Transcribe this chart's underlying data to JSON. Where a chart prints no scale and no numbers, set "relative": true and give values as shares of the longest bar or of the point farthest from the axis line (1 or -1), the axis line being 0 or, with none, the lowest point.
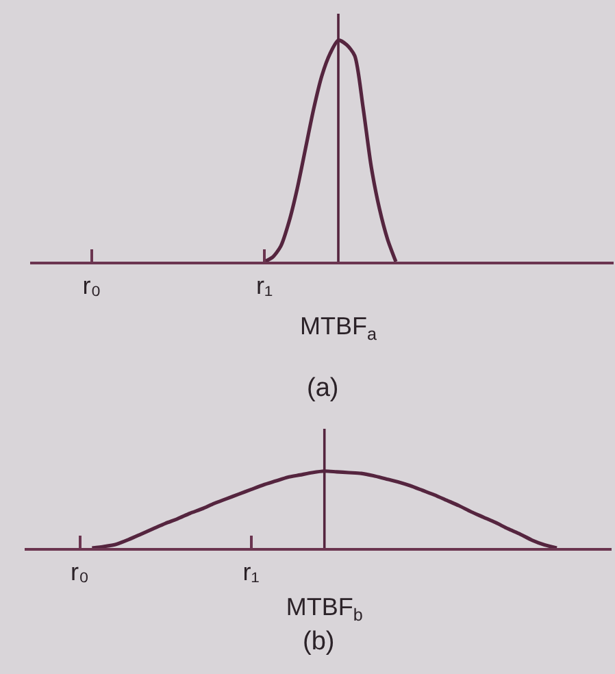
{
  "chart_data": [
    {
      "type": "line",
      "relative": true,
      "annotations": [
        "(a)"
      ],
      "categories": [
        null,
        null,
        null,
        null,
        null,
        null,
        null,
        "r₀",
        null,
        null,
        null,
        null,
        null,
        null,
        null,
        null,
        null,
        null,
        null,
        null,
        null,
        null,
        null,
        null,
        null,
        null,
        null,
        null,
        "r₁",
        null,
        null,
        null,
        null,
        null,
        null,
        null,
        null,
        "MTBF$_{a}$",
        null,
        null,
        null,
        null,
        null,
        null,
        null,
        null,
        null,
        null,
        null,
        null,
        null,
        null,
        null,
        null,
        null,
        null,
        null,
        null,
        null,
        null,
        null,
        null,
        null,
        null,
        null,
        null,
        null,
        null,
        null,
        null,
        null
      ],
      "ref_lines": [
        {
          "axis": "x",
          "value": "MTBF$_{a}$",
          "color": "#55253f"
        }
      ],
      "series": [
        {
          "color": "#55253f",
          "values": [
            null,
            null,
            null,
            null,
            null,
            null,
            null,
            null,
            null,
            null,
            null,
            null,
            null,
            null,
            null,
            null,
            null,
            null,
            null,
            null,
            null,
            null,
            null,
            null,
            null,
            null,
            null,
            null,
            0,
            0.02,
            0.07,
            0.18,
            0.33,
            0.51,
            0.69,
            0.84,
            0.94,
            1,
            0.98,
            0.93,
            0.7,
            0.43,
            0.24,
            0.1,
            0,
            null,
            null,
            null,
            null,
            null,
            null,
            null,
            null,
            null,
            null,
            null,
            null,
            null,
            null,
            null,
            null,
            null,
            null,
            null,
            null,
            null,
            null,
            null,
            null,
            null,
            null
          ]
        }
      ]
    },
    {
      "type": "line",
      "relative": true,
      "annotations": [
        "(b)"
      ],
      "categories": [
        null,
        null,
        null,
        null,
        "r₀",
        null,
        null,
        null,
        null,
        null,
        null,
        null,
        null,
        null,
        null,
        null,
        null,
        null,
        "r₁",
        null,
        null,
        null,
        null,
        null,
        "MTBF$_{b}$",
        null,
        null,
        null,
        null,
        null,
        null,
        null,
        null,
        null,
        null,
        null,
        null,
        null,
        null,
        null,
        null,
        null,
        null,
        null,
        null,
        null,
        null,
        null
      ],
      "ref_lines": [
        {
          "axis": "x",
          "value": "MTBF$_{b}$",
          "color": "#55253f"
        }
      ],
      "series": [
        {
          "color": "#55253f",
          "values": [
            null,
            null,
            null,
            null,
            null,
            0,
            0.02,
            0.05,
            0.11,
            0.18,
            0.25,
            0.32,
            0.38,
            0.45,
            0.51,
            0.58,
            0.64,
            0.7,
            0.76,
            0.82,
            0.87,
            0.92,
            0.95,
            0.98,
            1,
            0.99,
            0.98,
            0.97,
            0.94,
            0.9,
            0.86,
            0.81,
            0.75,
            0.69,
            0.62,
            0.55,
            0.47,
            0.4,
            0.33,
            0.25,
            0.18,
            0.1,
            0.04,
            0,
            null,
            null,
            null,
            null
          ]
        }
      ]
    }
  ]
}
